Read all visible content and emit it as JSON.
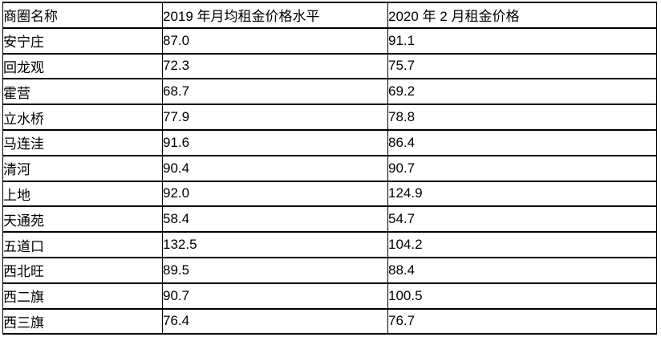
{
  "colors": {
    "background": "#ffffff",
    "border": "#000000",
    "text": "#000000"
  },
  "table": {
    "headers": {
      "district": "商圈名称",
      "rent_2019": "2019 年月均租金价格水平",
      "rent_2020": "2020 年 2 月租金价格"
    },
    "rows": [
      {
        "name": "安宁庄",
        "v2019": "87.0",
        "v2020": "91.1"
      },
      {
        "name": "回龙观",
        "v2019": "72.3",
        "v2020": "75.7"
      },
      {
        "name": "霍营",
        "v2019": "68.7",
        "v2020": "69.2"
      },
      {
        "name": "立水桥",
        "v2019": "77.9",
        "v2020": "78.8"
      },
      {
        "name": "马连洼",
        "v2019": "91.6",
        "v2020": "86.4"
      },
      {
        "name": "清河",
        "v2019": "90.4",
        "v2020": "90.7"
      },
      {
        "name": "上地",
        "v2019": "92.0",
        "v2020": "124.9"
      },
      {
        "name": "天通苑",
        "v2019": "58.4",
        "v2020": "54.7"
      },
      {
        "name": "五道口",
        "v2019": "132.5",
        "v2020": "104.2"
      },
      {
        "name": "西北旺",
        "v2019": "89.5",
        "v2020": "88.4"
      },
      {
        "name": "西二旗",
        "v2019": "90.7",
        "v2020": "100.5"
      },
      {
        "name": "西三旗",
        "v2019": "76.4",
        "v2020": "76.7"
      }
    ]
  }
}
